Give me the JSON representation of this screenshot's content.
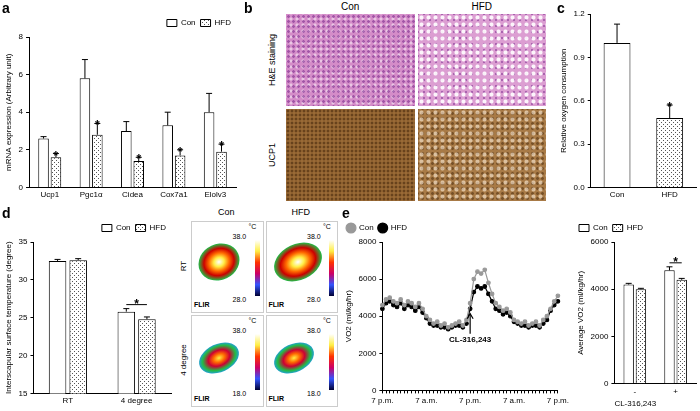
{
  "chart_data": [
    {
      "panel": "a",
      "type": "bar",
      "categories": [
        "Ucp1",
        "Pgc1α",
        "Cidea",
        "Cox7a1",
        "Elolv3"
      ],
      "y_label": "mRNA expression (Arbitrary unit)",
      "ylim": [
        0,
        8
      ],
      "yticks": [
        0,
        2,
        4,
        6,
        8
      ],
      "grid": false,
      "legend": "top right",
      "series": [
        {
          "name": "Con",
          "color": "#ffffff",
          "values": [
            2.6,
            5.8,
            3.0,
            3.3,
            4.0
          ],
          "errors": [
            0.1,
            1.0,
            0.5,
            0.7,
            1.0
          ]
        },
        {
          "name": "HFD",
          "color": "#555555",
          "values": [
            1.6,
            2.8,
            1.4,
            1.7,
            1.9
          ],
          "errors": [
            0.2,
            0.6,
            0.2,
            0.3,
            0.4
          ]
        }
      ],
      "significance": [
        {
          "category": "Ucp1",
          "series": "HFD",
          "text": "*"
        },
        {
          "category": "Pgc1α",
          "series": "HFD",
          "text": "*"
        },
        {
          "category": "Cidea",
          "series": "HFD",
          "text": "*"
        },
        {
          "category": "Cox7a1",
          "series": "HFD",
          "text": "*"
        },
        {
          "category": "Elolv3",
          "series": "HFD",
          "text": "*"
        }
      ]
    },
    {
      "panel": "c",
      "type": "bar",
      "categories": [
        "Con",
        "HFD"
      ],
      "y_label": "Relative oxygen consumption",
      "ylim": [
        0,
        1.2
      ],
      "yticks": [
        {
          "value": 0,
          "label": "0.0"
        },
        0.3,
        0.6,
        0.9,
        1.2
      ],
      "grid": false,
      "values": [
        1.0,
        0.48
      ],
      "errors": [
        0.13,
        0.09
      ],
      "colors": [
        "#ffffff",
        "#555555"
      ],
      "significance": [
        {
          "category": "HFD",
          "text": "*"
        }
      ]
    },
    {
      "panel": "d",
      "type": "bar",
      "categories": [
        "RT",
        "4 degree"
      ],
      "y_label": "Interscapular surface temperature (degree)",
      "ylim": [
        15,
        35
      ],
      "yticks": [
        15,
        20,
        25,
        30,
        35
      ],
      "grid": false,
      "legend": "top right",
      "series": [
        {
          "name": "Con",
          "color": "#ffffff",
          "values": [
            32.5,
            25.8
          ],
          "errors": [
            0.2,
            0.4
          ]
        },
        {
          "name": "HFD",
          "color": "#555555",
          "values": [
            32.6,
            24.8
          ],
          "errors": [
            0.2,
            0.3
          ]
        }
      ],
      "significance": [
        {
          "category": "4 degree",
          "text": "*"
        }
      ]
    },
    {
      "panel": "e",
      "type": "line",
      "categories": [
        "7 p.m.",
        null,
        null,
        null,
        null,
        null,
        null,
        null,
        null,
        null,
        null,
        null,
        "7 a.m.",
        null,
        null,
        null,
        null,
        null,
        null,
        null,
        null,
        null,
        null,
        null,
        "7 p.m.",
        null,
        null,
        null,
        null,
        null,
        null,
        null,
        null,
        null,
        null,
        null,
        "7 a.m.",
        null,
        null,
        null,
        null,
        null,
        null,
        null,
        null,
        null,
        null,
        null,
        "7 p.m."
      ],
      "y_label": "VO2 (ml/kg/hr)",
      "ylim": [
        0,
        8000
      ],
      "yticks": [
        0,
        2000,
        4000,
        6000,
        8000
      ],
      "grid": false,
      "legend": "top left",
      "series": [
        {
          "name": "Con",
          "color": "#999999",
          "marker": "circle",
          "values": [
            4600,
            4900,
            5000,
            4800,
            4700,
            4900,
            4600,
            4800,
            4700,
            4500,
            4700,
            4400,
            4000,
            3800,
            3600,
            3700,
            3500,
            3600,
            3400,
            3500,
            3600,
            3700,
            3500,
            3800,
            4700,
            6000,
            6400,
            6300,
            6500,
            5800,
            5200,
            4700,
            4500,
            4300,
            4400,
            4200,
            3800,
            3700,
            3600,
            3700,
            3500,
            3600,
            3700,
            3500,
            3800,
            4000,
            4400,
            4800,
            5100
          ]
        },
        {
          "name": "HFD",
          "color": "#000000",
          "marker": "circle",
          "values": [
            4400,
            4700,
            4800,
            4600,
            4500,
            4700,
            4400,
            4600,
            4500,
            4300,
            4500,
            4200,
            3900,
            3600,
            3500,
            3500,
            3400,
            3400,
            3300,
            3400,
            3500,
            3500,
            3400,
            3600,
            4400,
            5300,
            5600,
            5500,
            5600,
            5200,
            4800,
            4400,
            4300,
            4100,
            4200,
            4000,
            3700,
            3600,
            3500,
            3500,
            3400,
            3500,
            3500,
            3400,
            3600,
            3800,
            4300,
            4600,
            4800
          ]
        }
      ],
      "annotations": [
        {
          "text": "CL-316,243",
          "index": 24
        }
      ]
    },
    {
      "type": "bar",
      "categories": [
        "-",
        "+"
      ],
      "x_label": "CL-316,243",
      "y_label": "Average VO2 (ml/kg/hr)",
      "ylim": [
        0,
        6000
      ],
      "yticks": [
        0,
        2000,
        4000,
        6000
      ],
      "grid": false,
      "legend": "top left",
      "series": [
        {
          "name": "Con",
          "color": "#ffffff",
          "values": [
            4200,
            4800
          ],
          "errors": [
            50,
            150
          ]
        },
        {
          "name": "HFD",
          "color": "#555555",
          "values": [
            4000,
            4400
          ],
          "errors": [
            40,
            60
          ]
        }
      ],
      "significance": [
        {
          "category": "+",
          "text": "*"
        }
      ]
    }
  ],
  "images": [
    {
      "panel": "b",
      "kind": "micrograph",
      "columns": [
        "Con",
        "HFD"
      ],
      "rows": [
        "H&E staining",
        "UCP1"
      ]
    },
    {
      "kind": "thermal",
      "columns": [
        "Con",
        "HFD"
      ],
      "rows": [
        "RT",
        "4 degree"
      ],
      "unit": "°C",
      "scale_labels": [
        [
          "38.0",
          "28.0"
        ],
        [
          "38.0",
          "18.0"
        ]
      ],
      "brand": "FLIR"
    }
  ]
}
